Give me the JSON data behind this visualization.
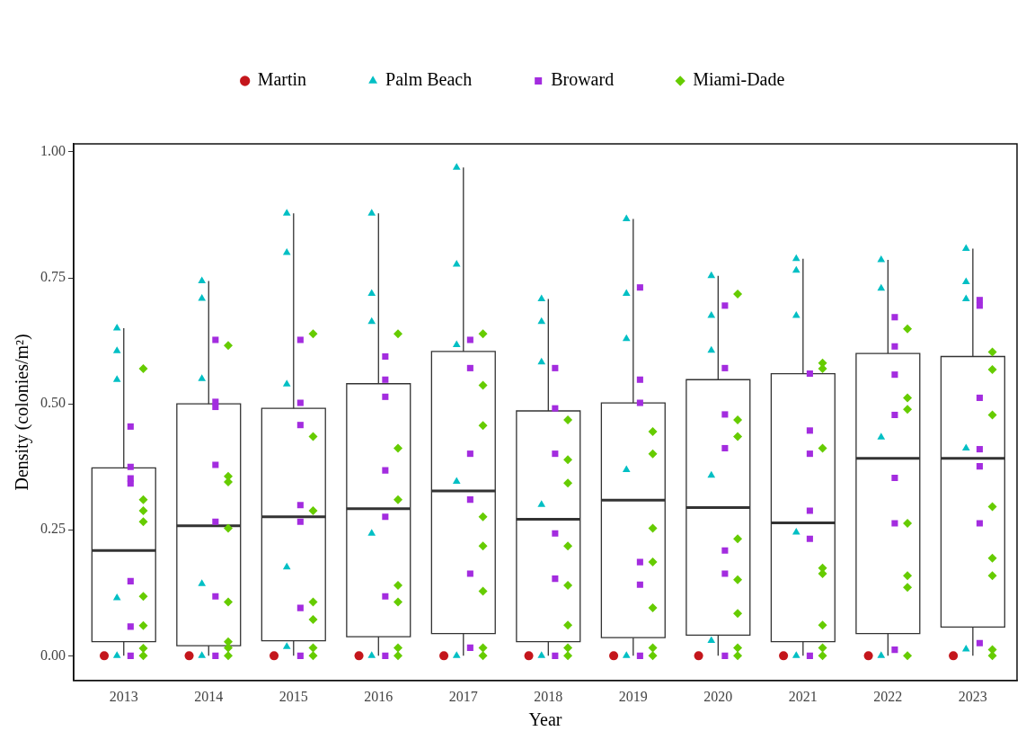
{
  "chart_data": {
    "type": "box",
    "xlabel": "Year",
    "ylabel": "Density (colonies/m²)",
    "x": [
      2013,
      2014,
      2015,
      2016,
      2017,
      2018,
      2019,
      2020,
      2021,
      2022,
      2023
    ],
    "xlim": [
      2012.41,
      2023.52
    ],
    "xticks": [
      2013,
      2014,
      2015,
      2016,
      2017,
      2018,
      2019,
      2020,
      2021,
      2022,
      2023
    ],
    "ylim": [
      -0.049,
      1.016
    ],
    "yticks": [
      {
        "value": 0,
        "label": "0.00"
      },
      {
        "value": 0.25,
        "label": "0.25"
      },
      {
        "value": 0.5,
        "label": "0.50"
      },
      {
        "value": 0.75,
        "label": "0.75"
      },
      {
        "value": 1,
        "label": "1.00"
      }
    ],
    "grid": false,
    "legend": "top",
    "boxes": [
      {
        "low": 0,
        "q1": 0.028,
        "median": 0.209,
        "q3": 0.373,
        "high": 0.65
      },
      {
        "low": 0,
        "q1": 0.02,
        "median": 0.258,
        "q3": 0.5,
        "high": 0.744
      },
      {
        "low": 0,
        "q1": 0.03,
        "median": 0.276,
        "q3": 0.491,
        "high": 0.878
      },
      {
        "low": 0,
        "q1": 0.038,
        "median": 0.292,
        "q3": 0.54,
        "high": 0.878
      },
      {
        "low": 0,
        "q1": 0.044,
        "median": 0.327,
        "q3": 0.604,
        "high": 0.969
      },
      {
        "low": 0,
        "q1": 0.028,
        "median": 0.271,
        "q3": 0.486,
        "high": 0.708
      },
      {
        "low": 0,
        "q1": 0.036,
        "median": 0.309,
        "q3": 0.502,
        "high": 0.867
      },
      {
        "low": 0,
        "q1": 0.041,
        "median": 0.294,
        "q3": 0.548,
        "high": 0.754
      },
      {
        "low": 0,
        "q1": 0.028,
        "median": 0.264,
        "q3": 0.56,
        "high": 0.788
      },
      {
        "low": 0,
        "q1": 0.044,
        "median": 0.392,
        "q3": 0.6,
        "high": 0.786
      },
      {
        "low": 0,
        "q1": 0.057,
        "median": 0.392,
        "q3": 0.594,
        "high": 0.808
      }
    ],
    "series": [
      {
        "name": "Martin",
        "type": "scatter",
        "marker": "circle",
        "color": "#c4161c",
        "x": [
          2012.77,
          2013.77,
          2014.77,
          2015.77,
          2016.77,
          2017.77,
          2018.77,
          2019.77,
          2020.77,
          2021.77,
          2022.77
        ],
        "values": [
          0,
          0,
          0,
          0,
          0,
          0,
          0,
          0,
          0,
          0,
          0
        ]
      },
      {
        "name": "Palm Beach",
        "type": "scatter",
        "marker": "triangle",
        "color": "#00bfc4",
        "x": [
          2012.92,
          2012.92,
          2012.92,
          2012.92,
          2012.92,
          2013.92,
          2013.92,
          2013.92,
          2013.92,
          2013.92,
          2014.92,
          2014.92,
          2014.92,
          2014.92,
          2014.92,
          2015.92,
          2015.92,
          2015.92,
          2015.92,
          2015.92,
          2016.92,
          2016.92,
          2016.92,
          2016.92,
          2016.92,
          2017.92,
          2017.92,
          2017.92,
          2017.92,
          2017.92,
          2018.92,
          2018.92,
          2018.92,
          2018.92,
          2018.92,
          2019.92,
          2019.92,
          2019.92,
          2019.92,
          2019.92,
          2020.92,
          2020.92,
          2020.92,
          2020.92,
          2020.92,
          2021.92,
          2021.92,
          2021.92,
          2021.92,
          2022.92,
          2022.92,
          2022.92,
          2022.92,
          2022.92
        ],
        "values": [
          0.65,
          0.605,
          0.548,
          0.115,
          0,
          0.744,
          0.709,
          0.55,
          0.143,
          0,
          0.878,
          0.8,
          0.539,
          0.176,
          0.018,
          0.878,
          0.719,
          0.663,
          0.243,
          0,
          0.969,
          0.777,
          0.617,
          0.346,
          0,
          0.708,
          0.663,
          0.583,
          0.3,
          0,
          0.867,
          0.719,
          0.629,
          0.369,
          0,
          0.754,
          0.675,
          0.606,
          0.358,
          0.03,
          0.788,
          0.765,
          0.675,
          0.245,
          0,
          0.786,
          0.729,
          0.434,
          0,
          0.808,
          0.742,
          0.708,
          0.412,
          0.013
        ]
      },
      {
        "name": "Broward",
        "type": "scatter",
        "marker": "square",
        "color": "#a32cdf",
        "x": [
          2013.08,
          2013.08,
          2013.08,
          2013.08,
          2013.08,
          2013.08,
          2013.08,
          2014.08,
          2014.08,
          2014.08,
          2014.08,
          2014.08,
          2014.08,
          2014.08,
          2015.08,
          2015.08,
          2015.08,
          2015.08,
          2015.08,
          2015.08,
          2015.08,
          2016.08,
          2016.08,
          2016.08,
          2016.08,
          2016.08,
          2016.08,
          2016.08,
          2017.08,
          2017.08,
          2017.08,
          2017.08,
          2017.08,
          2017.08,
          2018.08,
          2018.08,
          2018.08,
          2018.08,
          2018.08,
          2018.08,
          2019.08,
          2019.08,
          2019.08,
          2019.08,
          2019.08,
          2019.08,
          2020.08,
          2020.08,
          2020.08,
          2020.08,
          2020.08,
          2020.08,
          2020.08,
          2021.08,
          2021.08,
          2021.08,
          2021.08,
          2021.08,
          2021.08,
          2022.08,
          2022.08,
          2022.08,
          2022.08,
          2022.08,
          2022.08,
          2022.08,
          2023.08,
          2023.08,
          2023.08,
          2023.08,
          2023.08,
          2023.08,
          2023.08
        ],
        "values": [
          0.455,
          0.375,
          0.352,
          0.342,
          0.148,
          0.058,
          0,
          0.627,
          0.504,
          0.494,
          0.379,
          0.266,
          0.118,
          0,
          0.627,
          0.502,
          0.458,
          0.299,
          0.266,
          0.095,
          0,
          0.594,
          0.548,
          0.514,
          0.368,
          0.276,
          0.118,
          0,
          0.627,
          0.571,
          0.401,
          0.31,
          0.163,
          0.016,
          0.571,
          0.491,
          0.401,
          0.243,
          0.153,
          0,
          0.731,
          0.548,
          0.502,
          0.186,
          0.141,
          0,
          0.695,
          0.571,
          0.479,
          0.412,
          0.209,
          0.163,
          0,
          0.56,
          0.447,
          0.401,
          0.288,
          0.232,
          0,
          0.672,
          0.614,
          0.558,
          0.478,
          0.353,
          0.263,
          0.012,
          0.706,
          0.695,
          0.512,
          0.41,
          0.376,
          0.263,
          0.025
        ]
      },
      {
        "name": "Miami-Dade",
        "type": "scatter",
        "marker": "diamond",
        "color": "#66cc00",
        "x": [
          2013.23,
          2013.23,
          2013.23,
          2013.23,
          2013.23,
          2013.23,
          2013.23,
          2013.23,
          2014.23,
          2014.23,
          2014.23,
          2014.23,
          2014.23,
          2014.23,
          2014.23,
          2014.23,
          2015.23,
          2015.23,
          2015.23,
          2015.23,
          2015.23,
          2015.23,
          2015.23,
          2016.23,
          2016.23,
          2016.23,
          2016.23,
          2016.23,
          2016.23,
          2016.23,
          2017.23,
          2017.23,
          2017.23,
          2017.23,
          2017.23,
          2017.23,
          2017.23,
          2017.23,
          2018.23,
          2018.23,
          2018.23,
          2018.23,
          2018.23,
          2018.23,
          2018.23,
          2018.23,
          2019.23,
          2019.23,
          2019.23,
          2019.23,
          2019.23,
          2019.23,
          2019.23,
          2020.23,
          2020.23,
          2020.23,
          2020.23,
          2020.23,
          2020.23,
          2020.23,
          2020.23,
          2021.23,
          2021.23,
          2021.23,
          2021.23,
          2021.23,
          2021.23,
          2021.23,
          2021.23,
          2022.23,
          2022.23,
          2022.23,
          2022.23,
          2022.23,
          2022.23,
          2022.23,
          2023.23,
          2023.23,
          2023.23,
          2023.23,
          2023.23,
          2023.23,
          2023.23,
          2023.23
        ],
        "values": [
          0.57,
          0.31,
          0.288,
          0.266,
          0.118,
          0.06,
          0.015,
          0,
          0.616,
          0.356,
          0.345,
          0.253,
          0.107,
          0.028,
          0.016,
          0,
          0.639,
          0.435,
          0.288,
          0.107,
          0.072,
          0.016,
          0,
          0.639,
          0.412,
          0.31,
          0.14,
          0.107,
          0.016,
          0,
          0.639,
          0.537,
          0.457,
          0.276,
          0.218,
          0.128,
          0.016,
          0,
          0.468,
          0.389,
          0.343,
          0.218,
          0.14,
          0.061,
          0.016,
          0,
          0.445,
          0.401,
          0.253,
          0.186,
          0.095,
          0.016,
          0,
          0.718,
          0.468,
          0.435,
          0.232,
          0.151,
          0.084,
          0.016,
          0,
          0.581,
          0.57,
          0.412,
          0.174,
          0.163,
          0.061,
          0.016,
          0,
          0.649,
          0.512,
          0.489,
          0.263,
          0.159,
          0.136,
          0,
          0.603,
          0.568,
          0.478,
          0.296,
          0.194,
          0.159,
          0.012,
          0
        ]
      }
    ]
  }
}
